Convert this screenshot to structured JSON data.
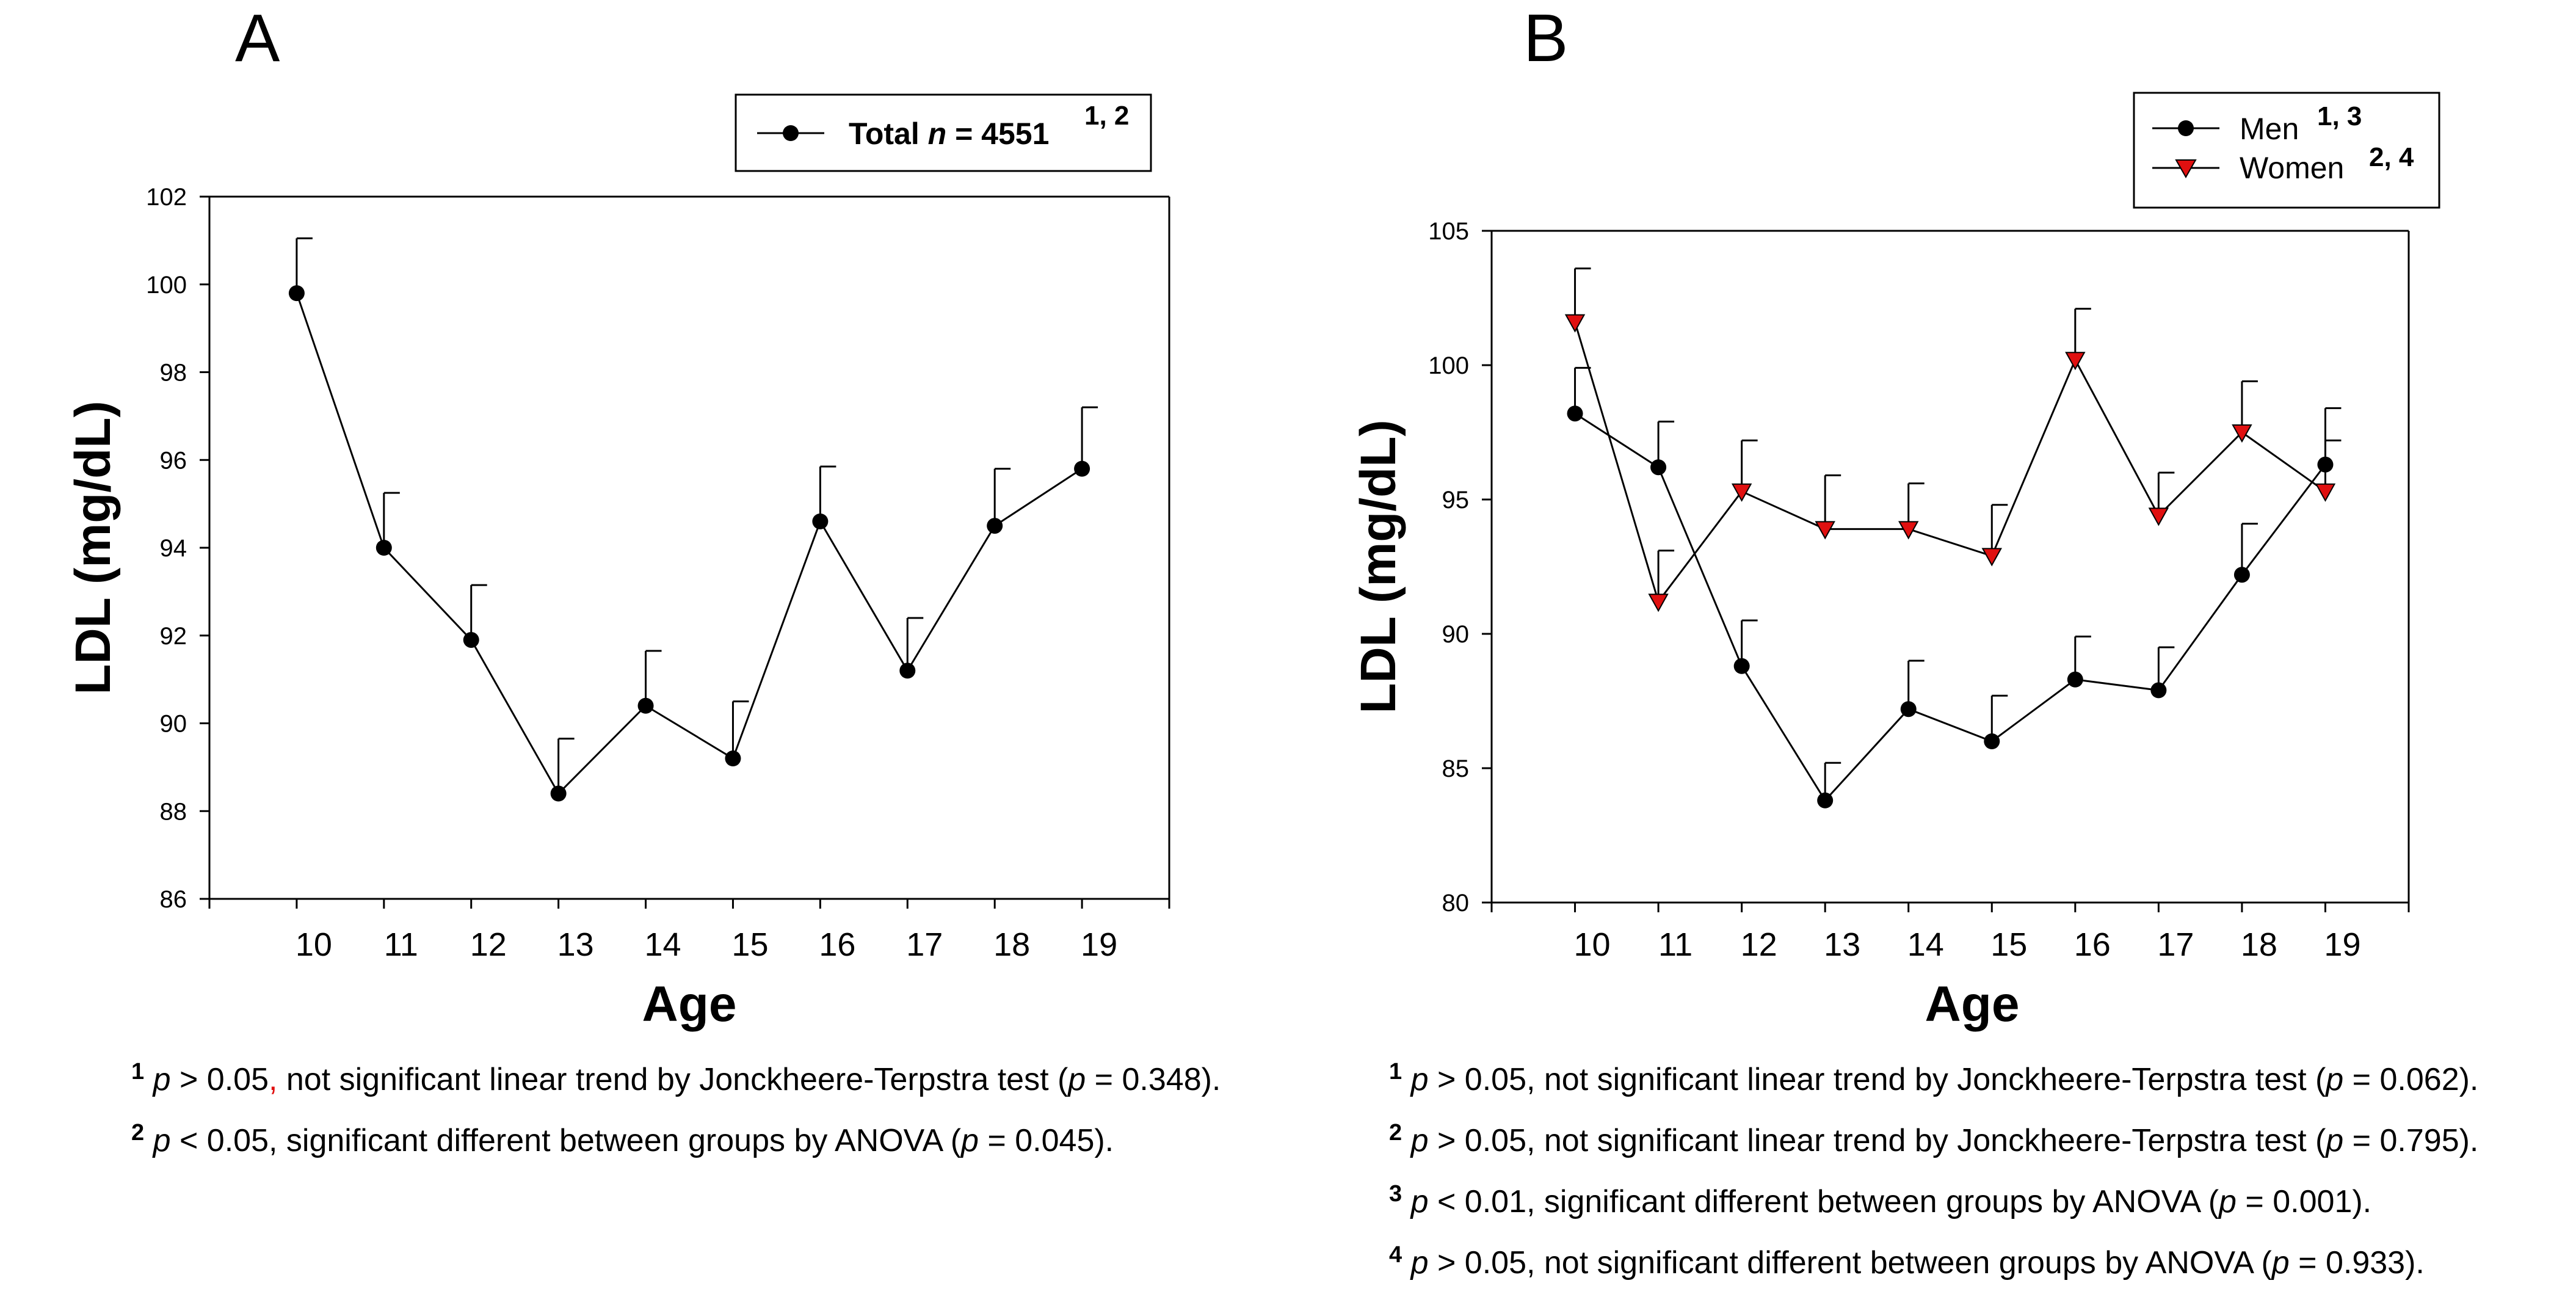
{
  "figure": {
    "panels": [
      {
        "title": "A",
        "legend": [
          {
            "prefix": "Total ",
            "italic": "n",
            "suffix": " = 4551",
            "superscript": "1, 2"
          }
        ]
      },
      {
        "title": "B",
        "legend": [
          {
            "prefix": "Men",
            "italic": "",
            "suffix": "",
            "superscript": "1, 3"
          },
          {
            "prefix": "Women",
            "italic": "",
            "suffix": "",
            "superscript": "2, 4"
          }
        ]
      }
    ],
    "footnotes_a": [
      {
        "sup": "1",
        "p": "p",
        "pre": " > 0.05",
        "comma": ",",
        "mid": " not significant linear trend by Jonckheere-Terpstra test (",
        "p2": "p",
        "post": " = 0.348)."
      },
      {
        "sup": "2",
        "p": "p",
        "pre": " < 0.05",
        "comma": ",",
        "mid": " significant different between groups by ANOVA (",
        "p2": "p",
        "post": " = 0.045)."
      }
    ],
    "footnotes_b": [
      {
        "sup": "1",
        "p": "p",
        "pre": " > 0.05",
        "comma": ",",
        "mid": " not significant linear trend by Jonckheere-Terpstra test (",
        "p2": "p",
        "post": " = 0.062)."
      },
      {
        "sup": "2",
        "p": "p",
        "pre": " > 0.05",
        "comma": ",",
        "mid": " not significant linear trend by Jonckheere-Terpstra test (",
        "p2": "p",
        "post": " = 0.795)."
      },
      {
        "sup": "3",
        "p": "p",
        "pre": " < 0.01",
        "comma": ",",
        "mid": " significant different between groups by ANOVA (",
        "p2": "p",
        "post": " = 0.001)."
      },
      {
        "sup": "4",
        "p": "p",
        "pre": " > 0.05",
        "comma": ",",
        "mid": " not significant different between groups by ANOVA (",
        "p2": "p",
        "post": " = 0.933)."
      }
    ],
    "colors": {
      "men": "#000000",
      "women": "#e01010",
      "total": "#000000",
      "comma_highlight": "#e01010"
    }
  },
  "chart_data": [
    {
      "type": "line",
      "title": "A",
      "xlabel": "Age",
      "ylabel": "LDL (mg/dL)",
      "x": [
        10,
        11,
        12,
        13,
        14,
        15,
        16,
        17,
        18,
        19
      ],
      "xlim": [
        9,
        20
      ],
      "ylim": [
        86,
        102
      ],
      "yticks": [
        86,
        88,
        90,
        92,
        94,
        96,
        98,
        100,
        102
      ],
      "series": [
        {
          "name": "Total n = 4551",
          "marker": "circle",
          "values": [
            99.8,
            94.0,
            91.9,
            88.4,
            90.4,
            89.2,
            94.6,
            91.2,
            94.5,
            95.8
          ],
          "error": [
            1.25,
            1.25,
            1.25,
            1.25,
            1.25,
            1.3,
            1.25,
            1.2,
            1.3,
            1.4
          ]
        }
      ]
    },
    {
      "type": "line",
      "title": "B",
      "xlabel": "Age",
      "ylabel": "LDL (mg/dL)",
      "x": [
        10,
        11,
        12,
        13,
        14,
        15,
        16,
        17,
        18,
        19
      ],
      "xlim": [
        9,
        20
      ],
      "ylim": [
        80,
        105
      ],
      "yticks": [
        80,
        85,
        90,
        95,
        100,
        105
      ],
      "series": [
        {
          "name": "Men",
          "marker": "circle",
          "values": [
            98.2,
            96.2,
            88.8,
            83.8,
            87.2,
            86.0,
            88.3,
            87.9,
            92.2,
            96.3
          ],
          "error": [
            1.7,
            1.7,
            1.7,
            1.4,
            1.8,
            1.7,
            1.6,
            1.6,
            1.9,
            2.1
          ]
        },
        {
          "name": "Women",
          "marker": "triangle-down",
          "values": [
            101.6,
            91.2,
            95.3,
            93.9,
            93.9,
            92.9,
            100.2,
            94.4,
            97.5,
            95.3
          ],
          "error": [
            2.0,
            1.9,
            1.9,
            2.0,
            1.7,
            1.9,
            1.9,
            1.6,
            1.9,
            1.9
          ]
        }
      ]
    }
  ]
}
